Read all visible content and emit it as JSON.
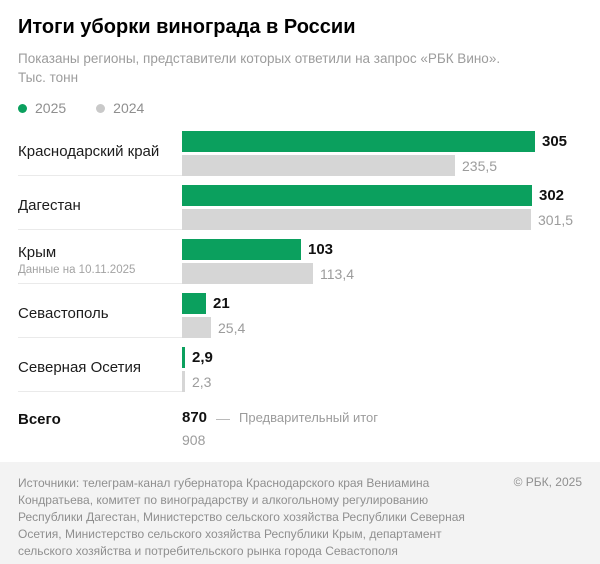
{
  "header": {
    "title": "Итоги уборки винограда в России",
    "subtitle": "Показаны регионы, представители которых ответили на запрос «РБК Вино». Тыс. тонн"
  },
  "legend": {
    "items": [
      {
        "label": "2025",
        "color": "#0ba05e"
      },
      {
        "label": "2024",
        "color": "#c9c9c9"
      }
    ]
  },
  "chart_data": {
    "type": "bar",
    "orientation": "horizontal",
    "title": "Итоги уборки винограда в России",
    "unit": "Тыс. тонн",
    "series_names": [
      "2025",
      "2024"
    ],
    "xmax": 305,
    "rows": [
      {
        "region": "Краснодарский край",
        "v2025": 305,
        "v2024": 235.5,
        "v2025_label": "305",
        "v2024_label": "235,5"
      },
      {
        "region": "Дагестан",
        "v2025": 302,
        "v2024": 301.5,
        "v2025_label": "302",
        "v2024_label": "301,5"
      },
      {
        "region": "Крым",
        "note": "Данные на 10.11.2025",
        "v2025": 103,
        "v2024": 113.4,
        "v2025_label": "103",
        "v2024_label": "113,4"
      },
      {
        "region": "Севастополь",
        "v2025": 21,
        "v2024": 25.4,
        "v2025_label": "21",
        "v2024_label": "25,4"
      },
      {
        "region": "Северная Осетия",
        "v2025": 2.9,
        "v2024": 2.3,
        "v2025_label": "2,9",
        "v2024_label": "2,3"
      }
    ],
    "total": {
      "label": "Всего",
      "v2025_label": "870",
      "dash": "—",
      "note": "Предварительный итог",
      "v2024_label": "908"
    }
  },
  "colors": {
    "green": "#0ba05e",
    "gray_bar": "#d6d6d6"
  },
  "footer": {
    "sources": "Источники: телеграм-канал губернатора Краснодарского края Вениамина Кондратьева, комитет по виноградарству и алкогольному регулированию Республики Дагестан, Министерство сельского хозяйства Республики Северная Осетия, Министерство сельского хозяйства Республики Крым, департамент сельского хозяйства и потребительского рынка города Севастополя",
    "copyright": "© РБК, 2025"
  }
}
